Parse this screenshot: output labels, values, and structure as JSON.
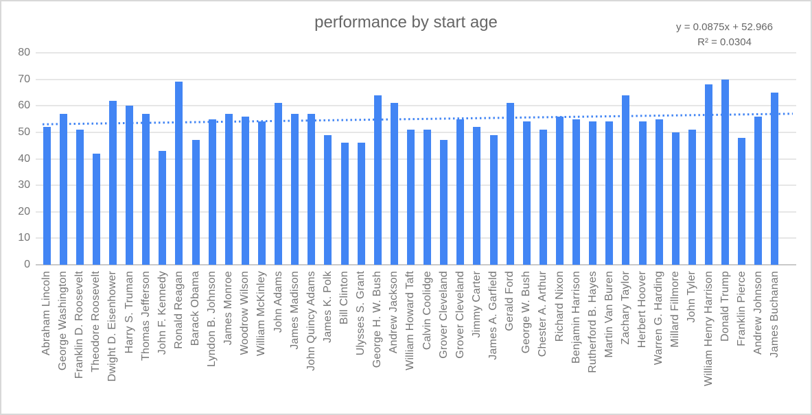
{
  "chart_data": {
    "type": "bar",
    "title": "performance by start age",
    "xlabel": "",
    "ylabel": "",
    "ylim": [
      0,
      80
    ],
    "yticks": [
      0,
      10,
      20,
      30,
      40,
      50,
      60,
      70,
      80
    ],
    "grid": true,
    "legend": "none",
    "categories": [
      "Abraham Lincoln",
      "George Washington",
      "Franklin D. Roosevelt",
      "Theodore Roosevelt",
      "Dwight D. Eisenhower",
      "Harry S. Truman",
      "Thomas Jefferson",
      "John F. Kennedy",
      "Ronald Reagan",
      "Barack Obama",
      "Lyndon B. Johnson",
      "James Monroe",
      "Woodrow Wilson",
      "William McKinley",
      "John Adams",
      "James Madison",
      "John Quincy Adams",
      "James K. Polk",
      "Bill Clinton",
      "Ulysses S. Grant",
      "George H. W. Bush",
      "Andrew Jackson",
      "William Howard Taft",
      "Calvin Coolidge",
      "Grover Cleveland",
      "Grover Cleveland",
      "Jimmy Carter",
      "James A. Garfield",
      "Gerald Ford",
      "George W. Bush",
      "Chester A. Arthur",
      "Richard Nixon",
      "Benjamin Harrison",
      "Rutherford B. Hayes",
      "Martin Van Buren",
      "Zachary Taylor",
      "Herbert Hoover",
      "Warren G. Harding",
      "Millard Fillmore",
      "John Tyler",
      "William Henry Harrison",
      "Donald Trump",
      "Franklin Pierce",
      "Andrew Johnson",
      "James Buchanan"
    ],
    "values": [
      52,
      57,
      51,
      42,
      62,
      60,
      57,
      43,
      69,
      47,
      55,
      57,
      56,
      54,
      61,
      57,
      57,
      49,
      46,
      46,
      64,
      61,
      51,
      51,
      47,
      55,
      52,
      49,
      61,
      54,
      51,
      56,
      55,
      54,
      54,
      64,
      54,
      55,
      50,
      51,
      68,
      70,
      48,
      56,
      65
    ],
    "trendline": {
      "slope": 0.0875,
      "intercept": 52.966,
      "equation_label": "y = 0.0875x + 52.966",
      "r_squared_label": "R² = 0.0304",
      "style": "dotted"
    }
  },
  "colors": {
    "bar": "#4285f4",
    "trendline": "#4285f4",
    "gridline": "#e6e6e6",
    "axis_line": "#c9c9c9",
    "title_text": "#666666",
    "equation_text": "#666666",
    "axis_text": "#757575",
    "frame_border": "#d8d8d8",
    "background": "#ffffff"
  }
}
